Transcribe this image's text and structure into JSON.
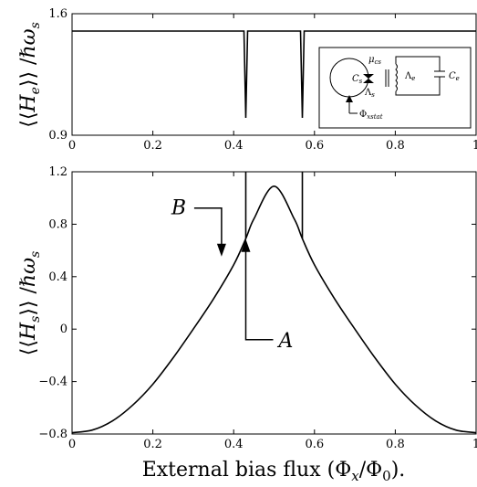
{
  "chart_data": [
    {
      "type": "line",
      "panel": "top",
      "ylabel": "⟨⟨H_e⟩⟩ /ℏω_s",
      "xlim": [
        0,
        1
      ],
      "ylim": [
        0.9,
        1.6
      ],
      "xticks": [
        "0",
        "0.2",
        "0.4",
        "0.6",
        "0.8",
        "1"
      ],
      "yticks": [
        "0.9",
        "1.6"
      ],
      "baseline": 1.5,
      "dips": [
        {
          "x": 0.43,
          "y": 1.0
        },
        {
          "x": 0.57,
          "y": 1.0
        }
      ],
      "inset_labels": {
        "mu": "μ_cs",
        "cs": "C_s",
        "lambda_s": "Λ_s",
        "lambda_e": "Λ_e",
        "ce": "C_e",
        "phi": "Φ_xstat"
      },
      "grid": false
    },
    {
      "type": "line",
      "panel": "bottom",
      "ylabel": "⟨⟨H_s⟩⟩ /ℏω_s",
      "xlabel": "External bias flux (Φ_x/Φ_0).",
      "xlim": [
        0,
        1
      ],
      "ylim": [
        -0.8,
        1.2
      ],
      "xticks": [
        "0",
        "0.2",
        "0.4",
        "0.6",
        "0.8",
        "1"
      ],
      "yticks": [
        "-0.8",
        "-0.4",
        "0",
        "0.4",
        "0.8",
        "1.2"
      ],
      "x": [
        0,
        0.05,
        0.1,
        0.15,
        0.2,
        0.25,
        0.3,
        0.35,
        0.4,
        0.43,
        0.45,
        0.5,
        0.55,
        0.57,
        0.6,
        0.65,
        0.7,
        0.75,
        0.8,
        0.85,
        0.9,
        0.95,
        1.0
      ],
      "y": [
        -0.79,
        -0.77,
        -0.7,
        -0.58,
        -0.42,
        -0.22,
        0.0,
        0.23,
        0.49,
        0.69,
        0.84,
        1.09,
        0.84,
        0.69,
        0.49,
        0.23,
        0.0,
        -0.22,
        -0.42,
        -0.58,
        -0.7,
        -0.77,
        -0.79
      ],
      "spikes": [
        {
          "x": 0.43,
          "y_from": 0.69,
          "y_to": 1.2
        },
        {
          "x": 0.57,
          "y_from": 0.69,
          "y_to": 1.2
        }
      ],
      "annotations": [
        {
          "label": "B",
          "x": 0.37,
          "y": 0.54
        },
        {
          "label": "A",
          "x": 0.43,
          "y": 0.7
        }
      ],
      "grid": false
    }
  ],
  "xticklabels_top": [
    "0",
    "0.2",
    "0.4",
    "0.6",
    "0.8",
    "1"
  ],
  "yticklabels_top": [
    "0.9",
    "1.6"
  ],
  "xticklabels_bottom": [
    "0",
    "0.2",
    "0.4",
    "0.6",
    "0.8",
    "1"
  ],
  "yticklabels_bottom": [
    "-0.8",
    "-0.4",
    "0",
    "0.4",
    "0.8",
    "1.2"
  ]
}
